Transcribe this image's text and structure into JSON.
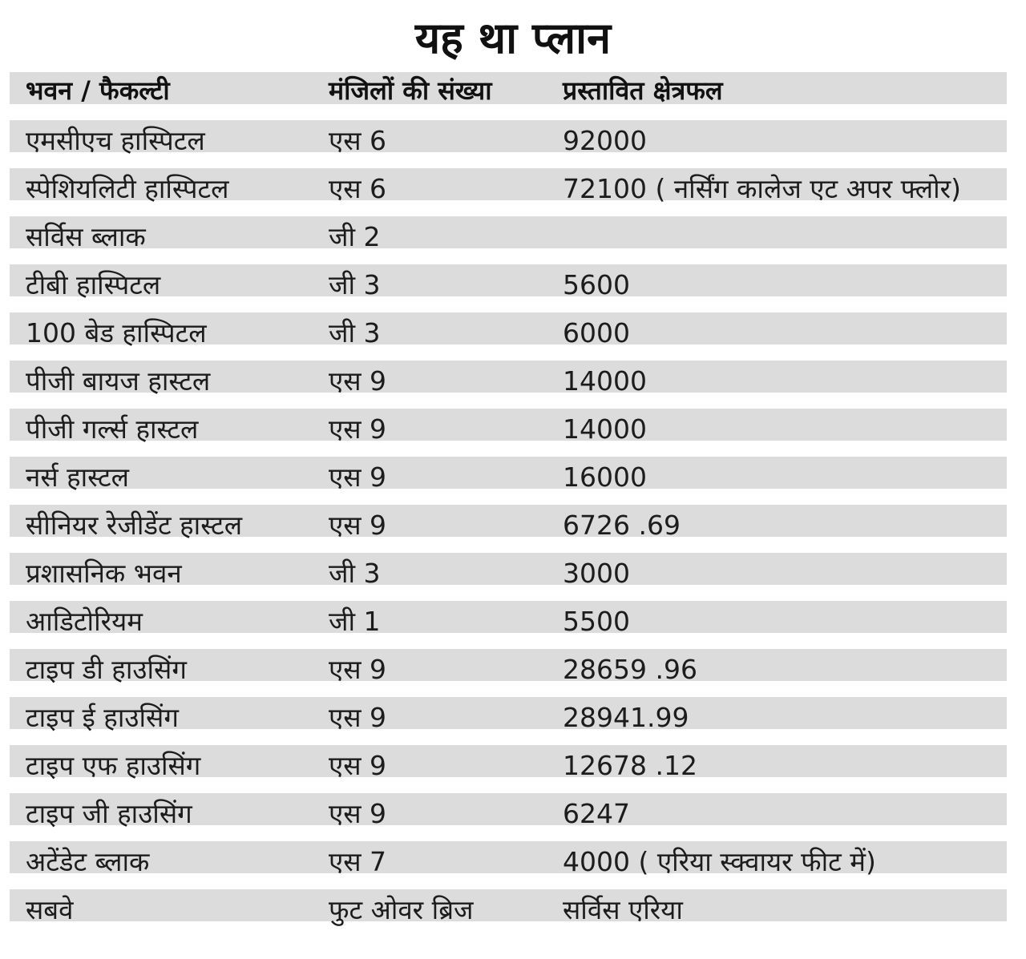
{
  "title": "यह था प्लान",
  "headers": [
    "भवन / फैकल्टी",
    "मंजिलों की संख्या",
    "प्रस्तावित क्षेत्रफल"
  ],
  "rows": [
    [
      "एमसीएच हास्पिटल",
      "एस 6",
      "92000"
    ],
    [
      "स्पेशियलिटी हास्पिटल",
      "एस 6",
      "72100 ( नर्सिंग कालेज एट अपर फ्लोर)"
    ],
    [
      "सर्विस ब्लाक",
      "जी 2",
      ""
    ],
    [
      "टीबी हास्पिटल",
      "जी 3",
      "5600"
    ],
    [
      "100 बेड हास्पिटल",
      "जी 3",
      "6000"
    ],
    [
      "पीजी बायज हास्टल",
      "एस 9",
      "14000"
    ],
    [
      "पीजी गर्ल्स हास्टल",
      "एस 9",
      "14000"
    ],
    [
      "नर्स हास्टल",
      "एस 9",
      "16000"
    ],
    [
      "सीनियर रेजीडेंट हास्टल",
      "एस 9",
      "6726 .69"
    ],
    [
      "प्रशासनिक भवन",
      "जी 3",
      "3000"
    ],
    [
      "आडिटोरियम",
      "जी 1",
      "5500"
    ],
    [
      "टाइप डी हाउसिंग",
      "एस 9",
      "28659 .96"
    ],
    [
      "टाइप ई हाउसिंग",
      "एस 9",
      "28941.99"
    ],
    [
      "टाइप एफ हाउसिंग",
      "एस 9",
      "12678 .12"
    ],
    [
      "टाइप जी हाउसिंग",
      "एस 9",
      "6247"
    ],
    [
      "अटेंडेट ब्लाक",
      "एस 7",
      "4000 ( एरिया स्क्वायर फीट में)"
    ],
    [
      "सबवे",
      "फुट ओवर ब्रिज",
      "सर्विस एरिया"
    ]
  ]
}
